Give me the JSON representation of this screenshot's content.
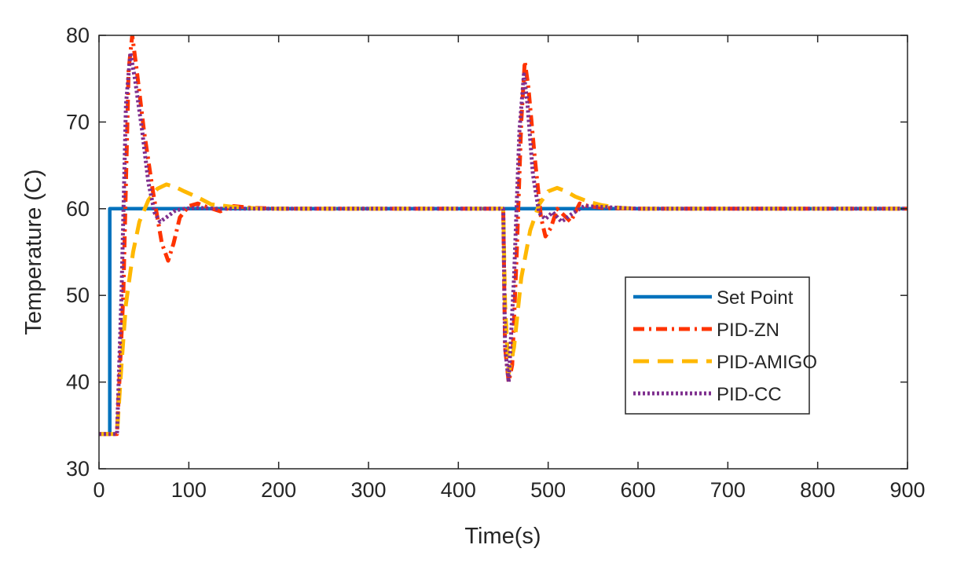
{
  "chart_data": {
    "type": "line",
    "title": "",
    "xlabel": "Time(s)",
    "ylabel": "Temperature (C)",
    "xlim": [
      0,
      900
    ],
    "ylim": [
      30,
      80
    ],
    "xticks": [
      0,
      100,
      200,
      300,
      400,
      500,
      600,
      700,
      800,
      900
    ],
    "yticks": [
      30,
      40,
      50,
      60,
      70,
      80
    ],
    "grid": false,
    "legend_position": "center-right",
    "series": [
      {
        "name": "Set Point",
        "color": "#0072BD",
        "style": "solid",
        "x": [
          0,
          12,
          12,
          900
        ],
        "y": [
          34,
          34,
          60,
          60
        ]
      },
      {
        "name": "PID-ZN",
        "color": "#FF3300",
        "style": "dashdot",
        "x": [
          0,
          20,
          27,
          33,
          37,
          42,
          50,
          60,
          70,
          77,
          83,
          90,
          100,
          110,
          120,
          135,
          150,
          170,
          200,
          250,
          300,
          450,
          452,
          456,
          460,
          465,
          470,
          474,
          478,
          485,
          492,
          497,
          503,
          510,
          518,
          525,
          535,
          545,
          560,
          600,
          650,
          900
        ],
        "y": [
          34,
          34,
          50,
          76,
          80,
          76,
          69,
          62,
          56,
          54,
          56,
          59,
          60.3,
          60.6,
          60.2,
          59.7,
          60.3,
          60.1,
          60,
          60,
          60,
          60,
          44,
          40,
          42,
          55,
          70,
          77,
          74,
          66,
          59,
          56.8,
          57.8,
          60,
          59.2,
          58.5,
          60.6,
          60.3,
          60.1,
          60,
          60,
          60
        ]
      },
      {
        "name": "PID-AMIGO",
        "color": "#FFB800",
        "style": "dashed",
        "x": [
          0,
          20,
          25,
          30,
          38,
          45,
          55,
          65,
          75,
          85,
          95,
          110,
          125,
          150,
          180,
          200,
          250,
          450,
          452,
          456,
          462,
          470,
          480,
          490,
          500,
          510,
          520,
          530,
          545,
          560,
          580,
          600,
          650,
          900
        ],
        "y": [
          34,
          34,
          42,
          49,
          55,
          58.5,
          61,
          62.3,
          62.8,
          62.5,
          62,
          61.3,
          60.5,
          60.2,
          60,
          60,
          60,
          60,
          49,
          41,
          44,
          52,
          57.5,
          60.5,
          62,
          62.4,
          62,
          61.4,
          60.8,
          60.4,
          60.1,
          60,
          60,
          60
        ]
      },
      {
        "name": "PID-CC",
        "color": "#7E2F8E",
        "style": "dotted",
        "x": [
          0,
          20,
          25,
          30,
          35,
          40,
          48,
          55,
          62,
          68,
          75,
          85,
          95,
          110,
          130,
          160,
          200,
          450,
          452,
          456,
          462,
          468,
          473,
          477,
          483,
          490,
          497,
          505,
          515,
          525,
          540,
          560,
          600,
          900
        ],
        "y": [
          34,
          34,
          50,
          72,
          78,
          75,
          69,
          63,
          59.5,
          58.5,
          59,
          59.8,
          60,
          60.1,
          60,
          60,
          60,
          60,
          44,
          40,
          52,
          69,
          75.5,
          72,
          64,
          59.5,
          58.8,
          59.6,
          58.5,
          59.3,
          60.3,
          60.2,
          60,
          60
        ]
      }
    ]
  }
}
